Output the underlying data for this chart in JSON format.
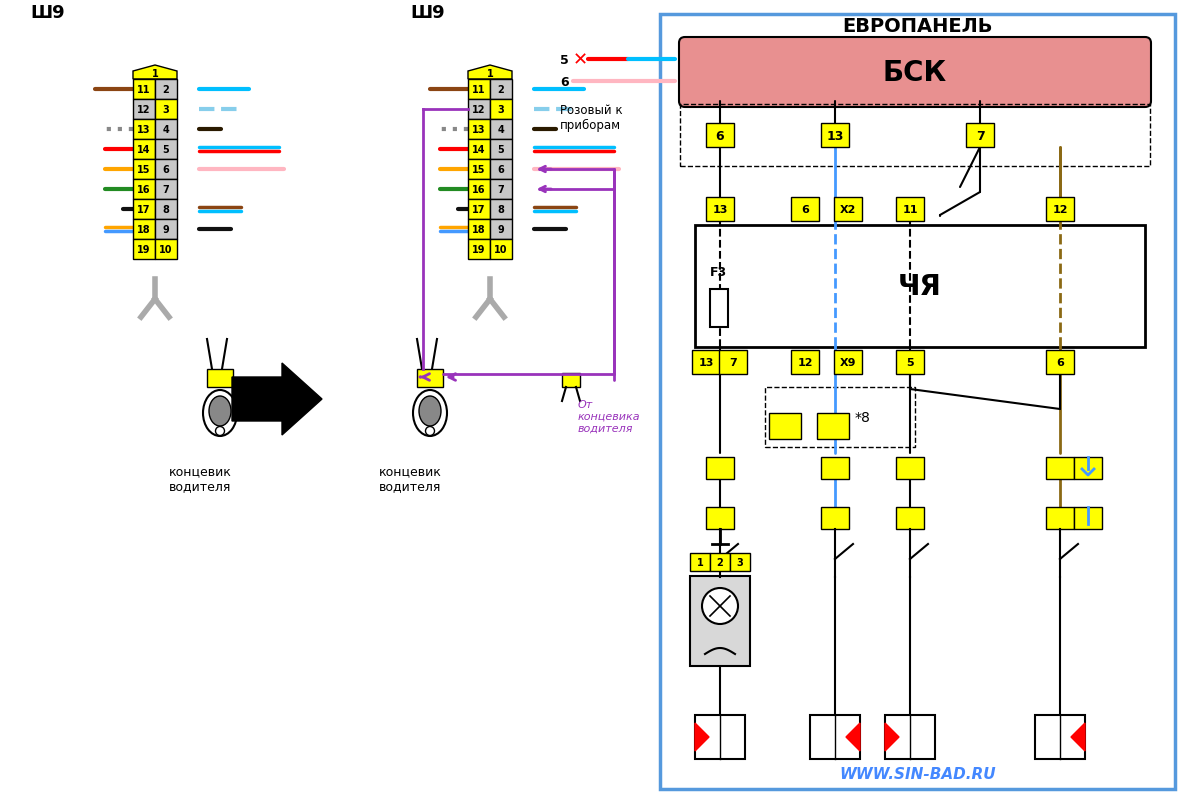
{
  "bg_color": "#ffffff",
  "connector_fill": "#ffff00",
  "gray_fill": "#c8c8c8",
  "bsk_fill": "#e89090",
  "purple": "#9933bb",
  "blue_wire": "#4499ff",
  "sh9_label": "Ш9",
  "bsk_label": "БСК",
  "chya_label": "ЧЯ",
  "euro_label": "ЕВРОПАНЕЛЬ",
  "f3_label": "F3",
  "star8_label": "*8",
  "website": "WWW.SIN-BAD.RU",
  "note_text": "Розовый к\nприборам",
  "from_switch": "От\nконцевика\nводителя",
  "koncevick": "концевик\nводителя"
}
